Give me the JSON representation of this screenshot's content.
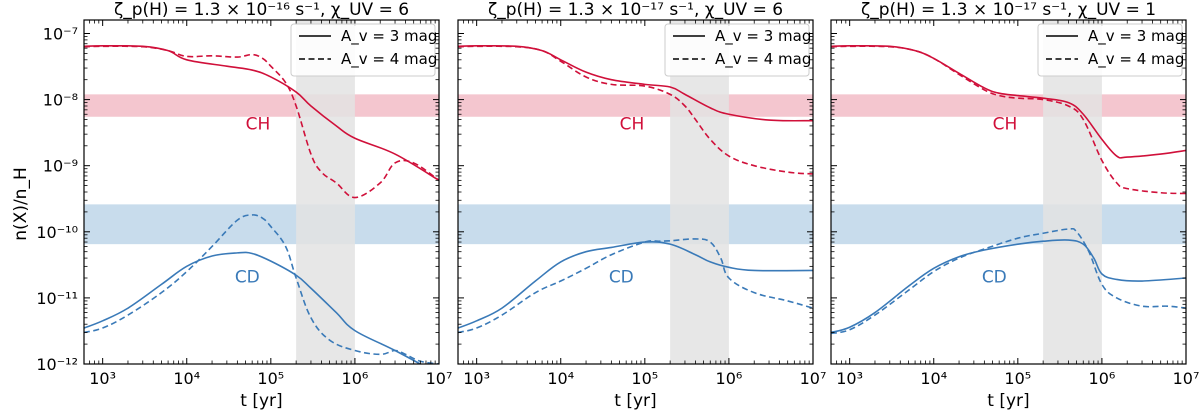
{
  "chart_data": {
    "type": "line",
    "xlabel": "t [yr]",
    "ylabel": "n(X)/n_H",
    "xscale": "log",
    "yscale": "log",
    "xlim": [
      600,
      10000000
    ],
    "ylim": [
      1e-12,
      1.6e-07
    ],
    "x_tick_labels": [
      "10³",
      "10⁴",
      "10⁵",
      "10⁶",
      "10⁷"
    ],
    "y_tick_labels": [
      "10⁻¹²",
      "10⁻¹¹",
      "10⁻¹⁰",
      "10⁻⁹",
      "10⁻⁸",
      "10⁻⁷"
    ],
    "colors": {
      "CH": "#d0103a",
      "CD": "#3a7ab8",
      "ch_band": "#f4c6cf",
      "cd_band": "#c8dcec",
      "shade": "#e3e3e3"
    },
    "legend": {
      "position": "top-right",
      "entries": [
        "A_v = 3 mag",
        "A_v = 4 mag"
      ],
      "styles": [
        "solid",
        "dashed"
      ]
    },
    "band_CH": [
      5.5e-09,
      1.2e-08
    ],
    "band_CD": [
      6.5e-11,
      2.6e-10
    ],
    "shaded_time": [
      200000,
      1000000
    ],
    "panels": [
      {
        "title": "ζ_p(H) = 1.3 × 10⁻¹⁶ s⁻¹, χ_UV = 6",
        "labels": {
          "CH": "CH",
          "CD": "CD"
        },
        "series": [
          {
            "name": "CH A_v = 3 mag",
            "species": "CH",
            "style": "solid",
            "x": [
              600,
              1000,
              3000,
              6000,
              10000,
              30000,
              60000,
              100000,
              200000,
              300000,
              600000,
              1000000,
              3000000,
              10000000
            ],
            "y": [
              6.4e-08,
              6.5e-08,
              6.4e-08,
              5.5e-08,
              4e-08,
              3.2e-08,
              2.8e-08,
              2.2e-08,
              1.3e-08,
              8e-09,
              4e-09,
              2.6e-09,
              1.5e-09,
              6e-10
            ]
          },
          {
            "name": "CH A_v = 4 mag",
            "species": "CH",
            "style": "dashed",
            "x": [
              600,
              1000,
              3000,
              6000,
              10000,
              20000,
              40000,
              60000,
              80000,
              100000,
              150000,
              200000,
              300000,
              400000,
              600000,
              1000000,
              2000000,
              3000000,
              5000000,
              10000000
            ],
            "y": [
              6.3e-08,
              6.4e-08,
              6.3e-08,
              5.5e-08,
              4.5e-08,
              4.6e-08,
              4.4e-08,
              4.8e-08,
              4.2e-08,
              3.2e-08,
              1.8e-08,
              8e-09,
              1.5e-09,
              8e-10,
              5.5e-10,
              3.3e-10,
              5.5e-10,
              1.1e-09,
              1.1e-09,
              6e-10
            ]
          },
          {
            "name": "CD A_v = 3 mag",
            "species": "CD",
            "style": "solid",
            "x": [
              600,
              1000,
              2000,
              5000,
              10000,
              20000,
              40000,
              60000,
              100000,
              200000,
              300000,
              600000,
              1000000,
              3000000,
              10000000
            ],
            "y": [
              3.5e-12,
              4.5e-12,
              7e-12,
              1.6e-11,
              3e-11,
              4.3e-11,
              4.8e-11,
              4.7e-11,
              3.6e-11,
              2.2e-11,
              1.4e-11,
              6e-12,
              3.2e-12,
              1.6e-12,
              7e-13
            ]
          },
          {
            "name": "CD A_v = 4 mag",
            "species": "CD",
            "style": "dashed",
            "x": [
              600,
              1000,
              2000,
              5000,
              10000,
              20000,
              40000,
              60000,
              80000,
              100000,
              150000,
              200000,
              300000,
              500000,
              1000000,
              2000000,
              3000000,
              4000000,
              6000000,
              10000000
            ],
            "y": [
              3e-12,
              3.5e-12,
              5.5e-12,
              1.2e-11,
              2.5e-11,
              6e-11,
              1.5e-10,
              1.8e-10,
              1.6e-10,
              1.2e-10,
              6e-11,
              2e-11,
              5e-12,
              2.3e-12,
              1.6e-12,
              1.4e-12,
              1.6e-12,
              1.4e-12,
              1.1e-12,
              1e-12
            ]
          }
        ]
      },
      {
        "title": "ζ_p(H) = 1.3 × 10⁻¹⁷ s⁻¹, χ_UV = 6",
        "labels": {
          "CH": "CH",
          "CD": "CD"
        },
        "series": [
          {
            "name": "CH A_v = 3 mag",
            "species": "CH",
            "style": "solid",
            "x": [
              600,
              1000,
              3000,
              6000,
              10000,
              20000,
              40000,
              100000,
              200000,
              300000,
              600000,
              1000000,
              3000000,
              10000000
            ],
            "y": [
              6.4e-08,
              6.5e-08,
              6.4e-08,
              5.5e-08,
              4e-08,
              2.6e-08,
              2e-08,
              1.7e-08,
              1.55e-08,
              1.2e-08,
              7.5e-09,
              6e-09,
              4.9e-09,
              4.8e-09
            ]
          },
          {
            "name": "CH A_v = 4 mag",
            "species": "CH",
            "style": "dashed",
            "x": [
              600,
              1000,
              3000,
              6000,
              10000,
              20000,
              40000,
              100000,
              200000,
              300000,
              400000,
              600000,
              1000000,
              2000000,
              5000000,
              10000000
            ],
            "y": [
              6.3e-08,
              6.4e-08,
              6.3e-08,
              5.5e-08,
              3.8e-08,
              2.2e-08,
              1.7e-08,
              1.6e-08,
              1.2e-08,
              8e-09,
              5e-09,
              2.5e-09,
              1.4e-09,
              1e-09,
              8e-10,
              7.5e-10
            ]
          },
          {
            "name": "CD A_v = 3 mag",
            "species": "CD",
            "style": "solid",
            "x": [
              600,
              1000,
              2000,
              5000,
              10000,
              20000,
              40000,
              100000,
              200000,
              400000,
              600000,
              1000000,
              2000000,
              10000000
            ],
            "y": [
              3.5e-12,
              4.5e-12,
              7e-12,
              1.8e-11,
              3.5e-11,
              5e-11,
              5.8e-11,
              7e-11,
              6.5e-11,
              4.5e-11,
              3.5e-11,
              2.9e-11,
              2.6e-11,
              2.6e-11
            ]
          },
          {
            "name": "CD A_v = 4 mag",
            "species": "CD",
            "style": "dashed",
            "x": [
              600,
              1000,
              2000,
              5000,
              10000,
              20000,
              40000,
              100000,
              150000,
              200000,
              400000,
              600000,
              800000,
              1000000,
              2000000,
              5000000,
              10000000
            ],
            "y": [
              3e-12,
              3.5e-12,
              5.5e-12,
              1.2e-11,
              1.8e-11,
              2.8e-11,
              4.5e-11,
              7e-11,
              7.2e-11,
              7.3e-11,
              7.8e-11,
              7e-11,
              4e-11,
              2e-11,
              1.2e-11,
              9e-12,
              7e-12
            ]
          }
        ]
      },
      {
        "title": "ζ_p(H) = 1.3 × 10⁻¹⁷ s⁻¹, χ_UV = 1",
        "labels": {
          "CH": "CH",
          "CD": "CD"
        },
        "series": [
          {
            "name": "CH A_v = 3 mag",
            "species": "CH",
            "style": "solid",
            "x": [
              600,
              1000,
              3000,
              6000,
              10000,
              20000,
              40000,
              60000,
              100000,
              200000,
              400000,
              600000,
              1000000,
              1500000,
              2000000,
              5000000,
              10000000
            ],
            "y": [
              6.4e-08,
              6.5e-08,
              6.4e-08,
              5.5e-08,
              4.2e-08,
              2.5e-08,
              1.5e-08,
              1.25e-08,
              1.15e-08,
              1.05e-08,
              9e-09,
              6e-09,
              2.5e-09,
              1.4e-09,
              1.35e-09,
              1.5e-09,
              1.7e-09
            ]
          },
          {
            "name": "CH A_v = 4 mag",
            "species": "CH",
            "style": "dashed",
            "x": [
              600,
              1000,
              3000,
              6000,
              10000,
              20000,
              40000,
              60000,
              100000,
              200000,
              400000,
              600000,
              1000000,
              1500000,
              2000000,
              5000000,
              10000000
            ],
            "y": [
              6.3e-08,
              6.4e-08,
              6.3e-08,
              5.5e-08,
              4.2e-08,
              2.4e-08,
              1.4e-08,
              1.15e-08,
              1.05e-08,
              1e-08,
              8e-09,
              5e-09,
              1.2e-09,
              5.5e-10,
              4.5e-10,
              3.9e-10,
              3.8e-10
            ]
          },
          {
            "name": "CD A_v = 3 mag",
            "species": "CD",
            "style": "solid",
            "x": [
              600,
              1000,
              2000,
              5000,
              10000,
              20000,
              40000,
              100000,
              200000,
              400000,
              600000,
              800000,
              1000000,
              1500000,
              3000000,
              10000000
            ],
            "y": [
              3e-12,
              3.6e-12,
              6e-12,
              1.5e-11,
              2.8e-11,
              4.2e-11,
              5.3e-11,
              6.5e-11,
              7.2e-11,
              7.5e-11,
              6.5e-11,
              4e-11,
              2.3e-11,
              1.9e-11,
              1.8e-11,
              2e-11
            ]
          },
          {
            "name": "CD A_v = 4 mag",
            "species": "CD",
            "style": "dashed",
            "x": [
              600,
              1000,
              2000,
              5000,
              10000,
              20000,
              40000,
              100000,
              200000,
              400000,
              500000,
              700000,
              1000000,
              1500000,
              3000000,
              6000000,
              10000000
            ],
            "y": [
              2.9e-12,
              3.3e-12,
              5.5e-12,
              1.3e-11,
              2.5e-11,
              4e-11,
              5.5e-11,
              8e-11,
              9.5e-11,
              1.1e-10,
              1e-10,
              5e-11,
              1.6e-11,
              1e-11,
              7.5e-12,
              7.5e-12,
              7e-12
            ]
          }
        ]
      }
    ]
  }
}
